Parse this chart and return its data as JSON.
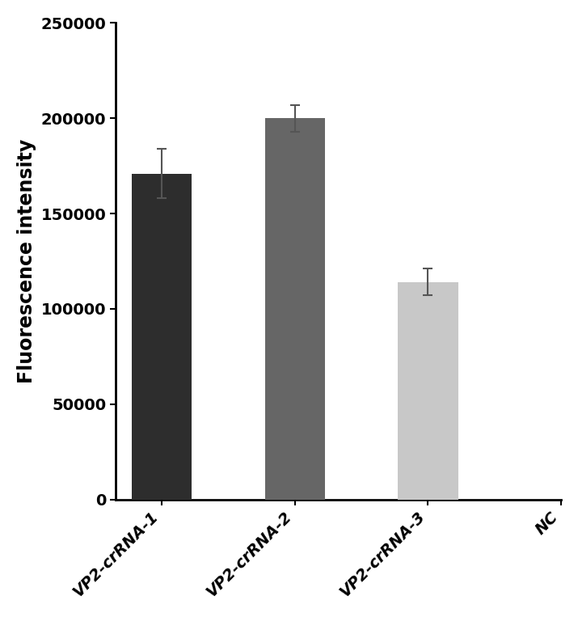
{
  "categories": [
    "VP2-crRNA-1",
    "VP2-crRNA-2",
    "VP2-crRNA-3",
    "NC"
  ],
  "values": [
    171000,
    200000,
    114000,
    0
  ],
  "errors": [
    13000,
    7000,
    7000,
    0
  ],
  "bar_colors": [
    "#2d2d2d",
    "#666666",
    "#c8c8c8",
    "#c8c8c8"
  ],
  "bar_visible": [
    true,
    true,
    true,
    false
  ],
  "ylabel": "Fluorescence intensity",
  "ylim": [
    0,
    250000
  ],
  "yticks": [
    0,
    50000,
    100000,
    150000,
    200000,
    250000
  ],
  "background_color": "#ffffff",
  "bar_width": 0.45,
  "figsize": [
    7.15,
    7.63
  ],
  "dpi": 100,
  "ylabel_fontsize": 17,
  "tick_fontsize": 14,
  "xlabel_fontsize": 14
}
